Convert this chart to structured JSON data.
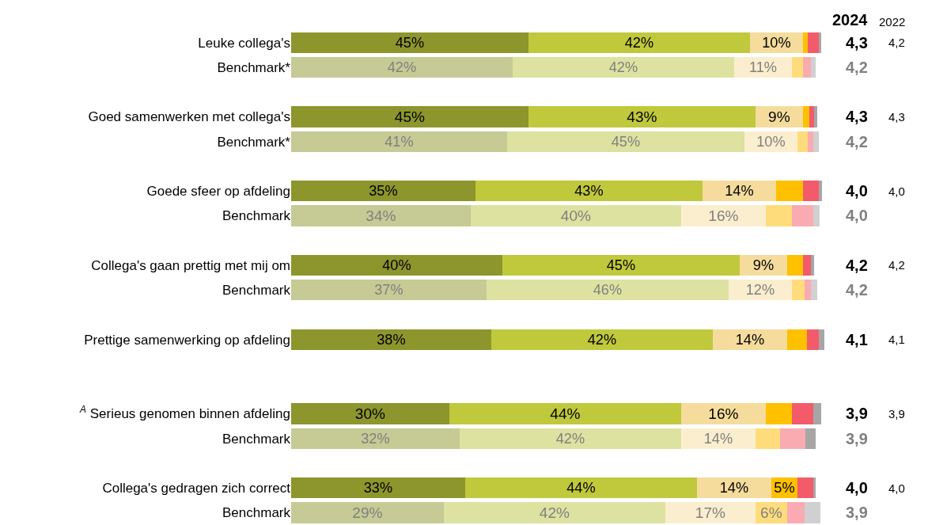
{
  "chart_data": {
    "type": "bar",
    "orientation": "horizontal",
    "stacked": true,
    "categories": [
      "Leuke collega's",
      "Benchmark*",
      null,
      "Goed samenwerken met collega's",
      "Benchmark*",
      null,
      "Goede sfeer op afdeling",
      "Benchmark",
      null,
      "Collega's gaan prettig met mij om",
      "Benchmark",
      null,
      "Prettige samenwerking op afdeling",
      null,
      null,
      "$^{A}$ Serieus genomen binnen afdeling",
      "Benchmark",
      null,
      "Collega's gedragen zich correct",
      "Benchmark"
    ],
    "series": [
      {
        "colors": [
          "#8c962c",
          "#c6ca94",
          null,
          "#8c962c",
          "#c6ca94",
          null,
          "#8c962c",
          "#c6ca94",
          null,
          "#8c962c",
          "#c6ca94",
          null,
          "#8c962c",
          null,
          null,
          "#8c962c",
          "#c6ca94",
          null,
          "#8c962c",
          "#c6ca94"
        ],
        "values": [
          45,
          42,
          null,
          45,
          41,
          null,
          35,
          34,
          null,
          40,
          37,
          null,
          38,
          null,
          null,
          30,
          32,
          null,
          33,
          29
        ],
        "value_labels": [
          "45%",
          "42%",
          null,
          "45%",
          "41%",
          null,
          "35%",
          "34%",
          null,
          "40%",
          "37%",
          null,
          "38%",
          null,
          null,
          "30%",
          "32%",
          null,
          "33%",
          "29%"
        ]
      },
      {
        "colors": [
          "#c0c83c",
          "#dde2a0",
          null,
          "#c0c83c",
          "#dde2a0",
          null,
          "#c0c83c",
          "#dde2a0",
          null,
          "#c0c83c",
          "#dde2a0",
          null,
          "#c0c83c",
          null,
          null,
          "#c0c83c",
          "#dde2a0",
          null,
          "#c0c83c",
          "#dde2a0"
        ],
        "values": [
          42,
          42,
          null,
          43,
          45,
          null,
          43,
          40,
          null,
          45,
          46,
          null,
          42,
          null,
          null,
          44,
          42,
          null,
          44,
          42
        ],
        "value_labels": [
          "42%",
          "42%",
          null,
          "43%",
          "45%",
          null,
          "43%",
          "40%",
          null,
          "45%",
          "46%",
          null,
          "42%",
          null,
          null,
          "44%",
          "42%",
          null,
          "44%",
          "42%"
        ]
      },
      {
        "colors": [
          "#f5dc9c",
          "#fbeece",
          null,
          "#f5dc9c",
          "#fbeece",
          null,
          "#f5dc9c",
          "#fbeece",
          null,
          "#f5dc9c",
          "#fbeece",
          null,
          "#f5dc9c",
          null,
          null,
          "#f5dc9c",
          "#fbeece",
          null,
          "#f5dc9c",
          "#fbeece"
        ],
        "values": [
          10,
          11,
          null,
          9,
          10,
          null,
          14,
          16,
          null,
          9,
          12,
          null,
          14,
          null,
          null,
          16,
          14,
          null,
          14,
          17
        ],
        "value_labels": [
          "10%",
          "11%",
          null,
          "9%",
          "10%",
          null,
          "14%",
          "16%",
          null,
          "9%",
          "12%",
          null,
          "14%",
          null,
          null,
          "16%",
          "14%",
          null,
          "14%",
          "17%"
        ]
      },
      {
        "colors": [
          "#ffc000",
          "#fedc7c",
          null,
          "#ffc000",
          "#fedc7c",
          null,
          "#ffc000",
          "#fedc7c",
          null,
          "#ffc000",
          "#fedc7c",
          null,
          "#ffc000",
          null,
          null,
          "#ffc000",
          "#fedc7c",
          null,
          "#ffc000",
          "#fedc7c"
        ],
        "values": [
          1,
          2,
          null,
          1.2,
          2,
          null,
          5,
          5,
          null,
          3,
          2.4,
          null,
          3.8,
          null,
          null,
          5,
          4.7,
          null,
          5,
          6
        ],
        "value_labels": [
          null,
          null,
          null,
          null,
          null,
          null,
          null,
          null,
          null,
          null,
          null,
          null,
          null,
          null,
          null,
          null,
          null,
          null,
          "5%",
          "6%"
        ]
      },
      {
        "colors": [
          "#f45b6a",
          "#f9abb1",
          null,
          "#f45b6a",
          "#f9abb1",
          null,
          "#f45b6a",
          "#f9abb1",
          null,
          "#f45b6a",
          "#f9abb1",
          null,
          "#f45b6a",
          null,
          null,
          "#f45b6a",
          "#f9abb1",
          null,
          "#f45b6a",
          "#f9abb1"
        ],
        "values": [
          2,
          1.5,
          null,
          1,
          1,
          null,
          3,
          4,
          null,
          1.5,
          1.2,
          null,
          2.2,
          null,
          null,
          4,
          4.8,
          null,
          3,
          3.4
        ]
      },
      {
        "colors": [
          "#a6a6a6",
          "#d0d0d0",
          null,
          "#a6a6a6",
          "#d0d0d0",
          null,
          "#a6a6a6",
          "#d0d0d0",
          null,
          "#a6a6a6",
          "#d0d0d0",
          null,
          "#a6a6a6",
          null,
          null,
          "#a6a6a6",
          "#a6a6a6",
          null,
          "#a6a6a6",
          "#d0d0d0"
        ],
        "values": [
          0.5,
          1,
          null,
          0.5,
          1,
          null,
          0.7,
          1.2,
          null,
          0.6,
          1.2,
          null,
          1.1,
          null,
          null,
          1.5,
          2,
          null,
          0.4,
          2.9
        ]
      }
    ],
    "annotations": [
      "2024",
      "4,3",
      "4,2",
      "4,3",
      "4,2",
      "4,0",
      "4,0",
      "4,2",
      "4,2",
      "4,1",
      "3,9",
      "3,9",
      "4,0",
      "3,9",
      "2022",
      "4,2",
      "4,3",
      "4,0",
      "4,2",
      "4,1",
      "3,9",
      "4,0"
    ],
    "legend": false,
    "tick_labels": "y"
  }
}
